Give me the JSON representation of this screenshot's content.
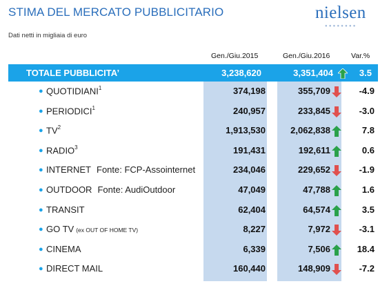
{
  "header": {
    "title": "STIMA DEL MERCATO PUBBLICITARIO",
    "subtitle": "Dati netti in migliaia di euro",
    "logo_text": "nielsen"
  },
  "columns": {
    "col1": "Gen./Giu.2015",
    "col2": "Gen./Giu.2016",
    "col3": "Var.%"
  },
  "colors": {
    "title_blue": "#2a6ebb",
    "total_bar": "#1ba3e8",
    "column_shade": "#c6d9ee",
    "arrow_up": "#2aa14a",
    "arrow_down": "#e0504e"
  },
  "total": {
    "label": "TOTALE PUBBLICITA’",
    "v2015": "3,238,620",
    "v2016": "3,351,404",
    "var": "3.5",
    "trend": "up"
  },
  "rows": [
    {
      "label": "QUOTIDIANI",
      "sup": "1",
      "source": "",
      "note": "",
      "v2015": "374,198",
      "v2016": "355,709",
      "var": "-4.9",
      "trend": "down"
    },
    {
      "label": "PERIODICI",
      "sup": "1",
      "source": "",
      "note": "",
      "v2015": "240,957",
      "v2016": "233,845",
      "var": "-3.0",
      "trend": "down"
    },
    {
      "label": "TV",
      "sup": "2",
      "source": "",
      "note": "",
      "v2015": "1,913,530",
      "v2016": "2,062,838",
      "var": "7.8",
      "trend": "up"
    },
    {
      "label": "RADIO",
      "sup": "3",
      "source": "",
      "note": "",
      "v2015": "191,431",
      "v2016": "192,611",
      "var": "0.6",
      "trend": "up"
    },
    {
      "label": "INTERNET",
      "sup": "",
      "source": "Fonte: FCP-Assointernet",
      "note": "",
      "v2015": "234,046",
      "v2016": "229,652",
      "var": "-1.9",
      "trend": "down"
    },
    {
      "label": "OUTDOOR",
      "sup": "",
      "source": "Fonte: AudiOutdoor",
      "note": "",
      "v2015": "47,049",
      "v2016": "47,788",
      "var": "1.6",
      "trend": "up"
    },
    {
      "label": "TRANSIT",
      "sup": "",
      "source": "",
      "note": "",
      "v2015": "62,404",
      "v2016": "64,574",
      "var": "3.5",
      "trend": "up"
    },
    {
      "label": "GO TV",
      "sup": "",
      "source": "",
      "note": "(ex OUT OF HOME TV)",
      "v2015": "8,227",
      "v2016": "7,972",
      "var": "-3.1",
      "trend": "down"
    },
    {
      "label": "CINEMA",
      "sup": "",
      "source": "",
      "note": "",
      "v2015": "6,339",
      "v2016": "7,506",
      "var": "18.4",
      "trend": "up"
    },
    {
      "label": "DIRECT MAIL",
      "sup": "",
      "source": "",
      "note": "",
      "v2015": "160,440",
      "v2016": "148,909",
      "var": "-7.2",
      "trend": "down"
    }
  ]
}
